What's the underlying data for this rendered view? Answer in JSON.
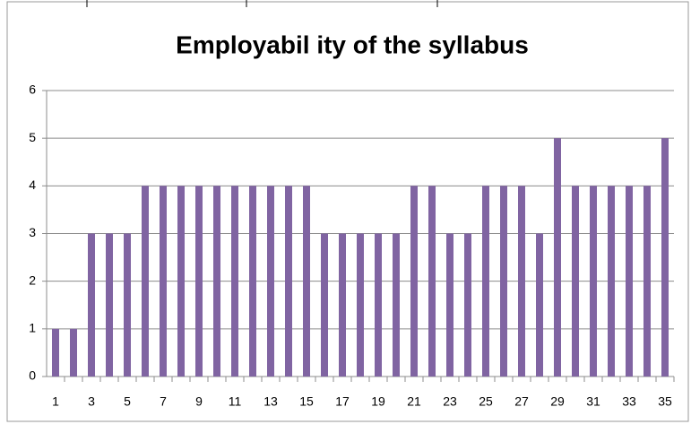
{
  "chart_data": {
    "type": "bar",
    "title": "Employabil ity of the syllabus",
    "categories": [
      1,
      null,
      3,
      null,
      5,
      null,
      7,
      null,
      9,
      null,
      11,
      null,
      13,
      null,
      15,
      null,
      17,
      null,
      19,
      null,
      21,
      null,
      23,
      null,
      25,
      null,
      27,
      null,
      29,
      null,
      31,
      null,
      33,
      null,
      35
    ],
    "values": [
      1,
      1,
      3,
      3,
      3,
      4,
      4,
      4,
      4,
      4,
      4,
      4,
      4,
      4,
      4,
      3,
      3,
      3,
      3,
      3,
      4,
      4,
      3,
      3,
      4,
      4,
      4,
      3,
      5,
      4,
      4,
      4,
      4,
      4,
      5
    ],
    "color": "#8064a2",
    "ylim": [
      0,
      6
    ],
    "yticks": [
      0,
      1,
      2,
      3,
      4,
      5,
      6
    ],
    "grid": true
  }
}
